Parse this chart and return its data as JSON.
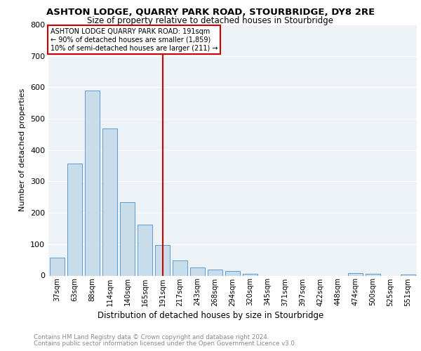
{
  "title1": "ASHTON LODGE, QUARRY PARK ROAD, STOURBRIDGE, DY8 2RE",
  "title2": "Size of property relative to detached houses in Stourbridge",
  "xlabel": "Distribution of detached houses by size in Stourbridge",
  "ylabel": "Number of detached properties",
  "categories": [
    "37sqm",
    "63sqm",
    "88sqm",
    "114sqm",
    "140sqm",
    "165sqm",
    "191sqm",
    "217sqm",
    "243sqm",
    "268sqm",
    "294sqm",
    "320sqm",
    "345sqm",
    "371sqm",
    "397sqm",
    "422sqm",
    "448sqm",
    "474sqm",
    "500sqm",
    "525sqm",
    "551sqm"
  ],
  "values": [
    58,
    357,
    590,
    469,
    234,
    163,
    97,
    48,
    25,
    20,
    15,
    6,
    0,
    0,
    0,
    0,
    0,
    8,
    5,
    0,
    4
  ],
  "bar_color": "#c9dcea",
  "bar_edge_color": "#5b9bd5",
  "marker_index": 6,
  "marker_line_color": "#cc0000",
  "annotation_line1": "ASHTON LODGE QUARRY PARK ROAD: 191sqm",
  "annotation_line2": "← 90% of detached houses are smaller (1,859)",
  "annotation_line3": "10% of semi-detached houses are larger (211) →",
  "annotation_box_color": "#cc0000",
  "ylim": [
    0,
    800
  ],
  "yticks": [
    0,
    100,
    200,
    300,
    400,
    500,
    600,
    700,
    800
  ],
  "footer1": "Contains HM Land Registry data © Crown copyright and database right 2024.",
  "footer2": "Contains public sector information licensed under the Open Government Licence v3.0.",
  "plot_bg": "#edf2f7"
}
